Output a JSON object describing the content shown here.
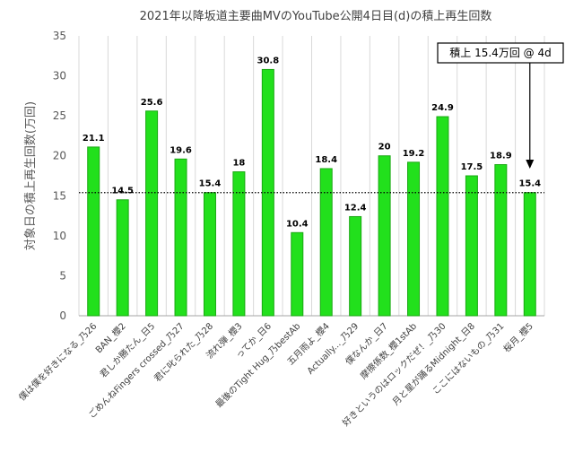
{
  "chart_data": {
    "type": "bar",
    "title": "2021年以降坂道主要曲MVのYouTube公開4日目(d)の積上再生回数",
    "xlabel": "",
    "ylabel": "対象日の積上再生回数(万回)",
    "ylim": [
      0,
      35
    ],
    "yticks": [
      0,
      5,
      10,
      15,
      20,
      25,
      30,
      35
    ],
    "grid": "vertical",
    "legend": "none",
    "bar_color": "#22e01c",
    "categories": [
      "僕は僕を好きになる_乃26",
      "BAN_櫻2",
      "君しか勝たん_日5",
      "ごめんねFingers crossed_乃27",
      "君に叱られた_乃28",
      "流れ弾_櫻3",
      "ってか_日6",
      "最後のTight Hug_乃bestAb",
      "五月雨よ_櫻4",
      "Actually..._乃29",
      "僕なんか_日7",
      "摩擦係数_櫻1stAb",
      "好きというのはロックだぜ！_乃30",
      "月と星が踊るMidnight_日8",
      "ここにはないもの_乃31",
      "桜月_櫻5"
    ],
    "values": [
      21.1,
      14.5,
      25.6,
      19.6,
      15.4,
      18,
      30.8,
      10.4,
      18.4,
      12.4,
      20,
      19.2,
      24.9,
      17.5,
      18.9,
      15.4
    ],
    "data_labels": [
      "21.1",
      "14.5",
      "25.6",
      "19.6",
      "15.4",
      "18",
      "30.8",
      "10.4",
      "18.4",
      "12.4",
      "20",
      "19.2",
      "24.9",
      "17.5",
      "18.9",
      "15.4"
    ],
    "reference_line": {
      "value": 15.4,
      "style": "dotted"
    },
    "annotation": {
      "text": "積上 15.4万回 @ 4d",
      "target_category_index": 15
    }
  }
}
